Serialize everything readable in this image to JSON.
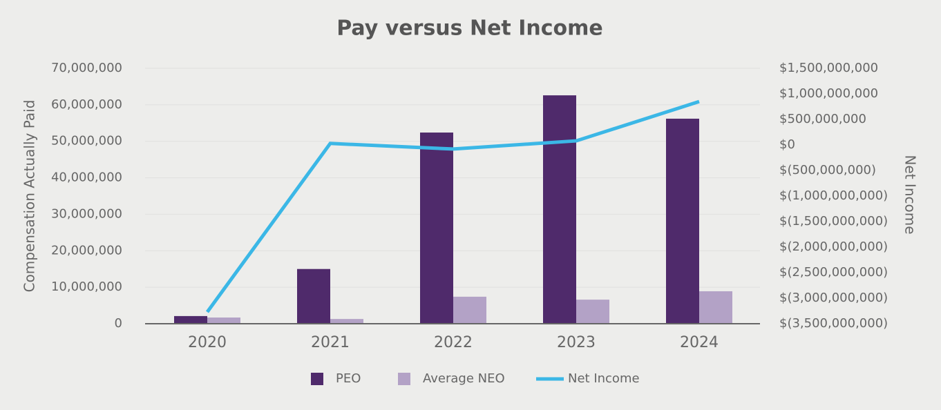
{
  "chart_data": {
    "type": "bar",
    "title": "Pay versus Net Income",
    "y_label": "Compensation Actually Paid",
    "y2_label": "Net Income",
    "categories": [
      "2020",
      "2021",
      "2022",
      "2023",
      "2024"
    ],
    "series": [
      {
        "name": "PEO",
        "type": "bar",
        "color": "#4f2a6b",
        "values": [
          2100000,
          15000000,
          52400000,
          62600000,
          56200000
        ]
      },
      {
        "name": "Average NEO",
        "type": "bar",
        "color": "#b3a2c6",
        "values": [
          1700000,
          1300000,
          7400000,
          6600000,
          8900000
        ]
      },
      {
        "name": "Net Income",
        "type": "line",
        "axis": "y2",
        "color": "#3bb7e6",
        "values": [
          -3270000000,
          30000000,
          -80000000,
          80000000,
          850000000
        ]
      }
    ],
    "ylim": [
      0,
      70000000
    ],
    "yticks": [
      0,
      {
        "value": 10000000,
        "label": "10,000,000"
      },
      {
        "value": 20000000,
        "label": "20,000,000"
      },
      {
        "value": 30000000,
        "label": "30,000,000"
      },
      {
        "value": 40000000,
        "label": "40,000,000"
      },
      {
        "value": 50000000,
        "label": "50,000,000"
      },
      {
        "value": 60000000,
        "label": "60,000,000"
      },
      {
        "value": 70000000,
        "label": "70,000,000"
      }
    ],
    "y2lim": [
      -3500000000,
      1500000000
    ],
    "y2ticks": [
      {
        "value": -3500000000,
        "label": "$(3,500,000,000)"
      },
      {
        "value": -3000000000,
        "label": "$(3,000,000,000)"
      },
      {
        "value": -2500000000,
        "label": "$(2,500,000,000)"
      },
      {
        "value": -2000000000,
        "label": "$(2,000,000,000)"
      },
      {
        "value": -1500000000,
        "label": "$(1,500,000,000)"
      },
      {
        "value": -1000000000,
        "label": "$(1,000,000,000)"
      },
      {
        "value": -500000000,
        "label": "$(500,000,000)"
      },
      {
        "value": 0,
        "label": "$0"
      },
      {
        "value": 500000000,
        "label": "$500,000,000"
      },
      {
        "value": 1000000000,
        "label": "$1,000,000,000"
      },
      {
        "value": 1500000000,
        "label": "$1,500,000,000"
      }
    ],
    "grid": true
  }
}
